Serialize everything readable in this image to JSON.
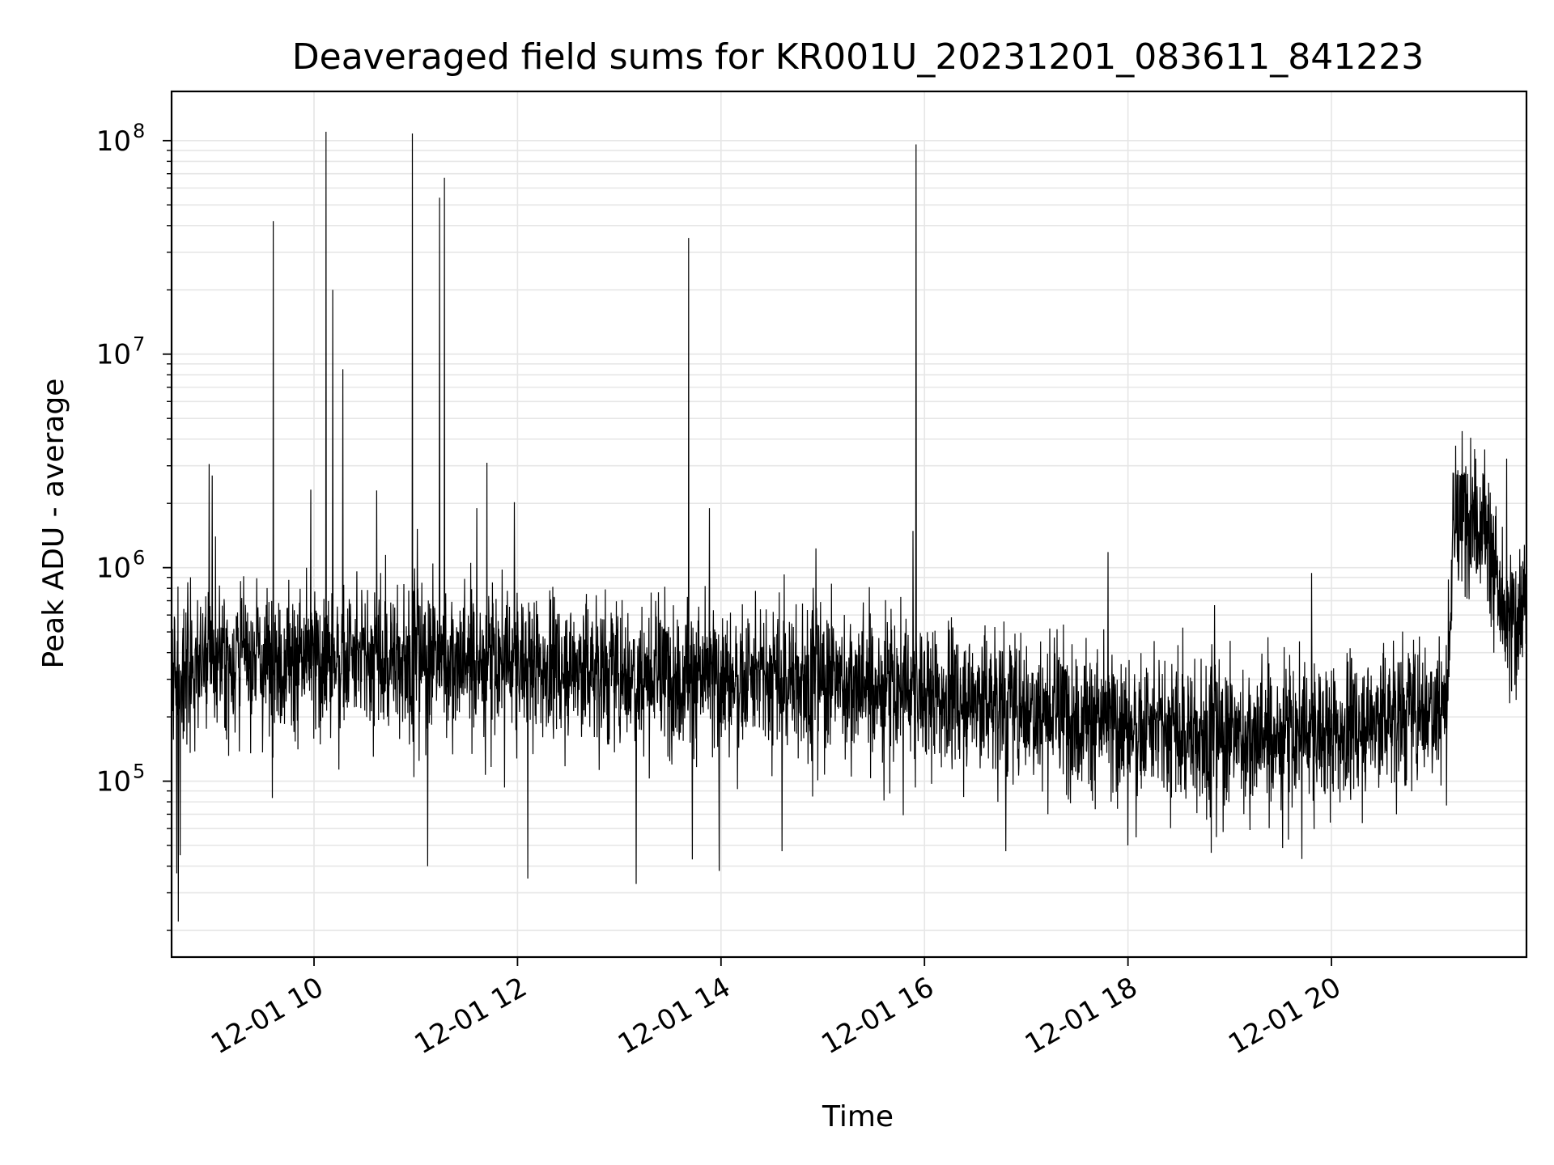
{
  "chart_data": {
    "type": "line",
    "title": "Deaveraged field sums for KR001U_20231201_083611_841223",
    "xlabel": "Time",
    "ylabel": "Peak ADU - average",
    "yscale": "log",
    "xlim": [
      "2023-12-01 08:36",
      "2023-12-01 21:55"
    ],
    "ylim": [
      15000,
      170000000
    ],
    "grid": true,
    "line_color": "#000000",
    "grid_color": "#e6e6e6",
    "x_ticks": [
      {
        "time": "2023-12-01 10:00",
        "label": "12-01 10"
      },
      {
        "time": "2023-12-01 12:00",
        "label": "12-01 12"
      },
      {
        "time": "2023-12-01 14:00",
        "label": "12-01 14"
      },
      {
        "time": "2023-12-01 16:00",
        "label": "12-01 16"
      },
      {
        "time": "2023-12-01 18:00",
        "label": "12-01 18"
      },
      {
        "time": "2023-12-01 20:00",
        "label": "12-01 20"
      }
    ],
    "y_ticks": [
      {
        "value": 100000,
        "base": "10",
        "exp": "5"
      },
      {
        "value": 1000000,
        "base": "10",
        "exp": "6"
      },
      {
        "value": 10000000,
        "base": "10",
        "exp": "7"
      },
      {
        "value": 100000000,
        "base": "10",
        "exp": "8"
      }
    ],
    "baseline": [
      {
        "time": "2023-12-01 08:36",
        "value": 300000
      },
      {
        "time": "2023-12-01 09:00",
        "value": 380000
      },
      {
        "time": "2023-12-01 10:00",
        "value": 370000
      },
      {
        "time": "2023-12-01 11:00",
        "value": 370000
      },
      {
        "time": "2023-12-01 12:00",
        "value": 360000
      },
      {
        "time": "2023-12-01 13:00",
        "value": 330000
      },
      {
        "time": "2023-12-01 14:00",
        "value": 300000
      },
      {
        "time": "2023-12-01 15:00",
        "value": 300000
      },
      {
        "time": "2023-12-01 16:00",
        "value": 260000
      },
      {
        "time": "2023-12-01 17:00",
        "value": 230000
      },
      {
        "time": "2023-12-01 18:00",
        "value": 180000
      },
      {
        "time": "2023-12-01 19:00",
        "value": 160000
      },
      {
        "time": "2023-12-01 20:00",
        "value": 170000
      },
      {
        "time": "2023-12-01 20:40",
        "value": 210000
      },
      {
        "time": "2023-12-01 21:08",
        "value": 240000
      },
      {
        "time": "2023-12-01 21:12",
        "value": 1500000
      },
      {
        "time": "2023-12-01 21:24",
        "value": 2000000
      },
      {
        "time": "2023-12-01 21:34",
        "value": 1300000
      },
      {
        "time": "2023-12-01 21:42",
        "value": 500000
      },
      {
        "time": "2023-12-01 21:55",
        "value": 700000
      }
    ],
    "spikes": [
      {
        "time": "2023-12-01 09:36",
        "value": 42000000
      },
      {
        "time": "2023-12-01 10:07",
        "value": 110000000
      },
      {
        "time": "2023-12-01 10:11",
        "value": 20000000
      },
      {
        "time": "2023-12-01 10:17",
        "value": 8500000
      },
      {
        "time": "2023-12-01 10:37",
        "value": 2300000
      },
      {
        "time": "2023-12-01 10:58",
        "value": 108000000
      },
      {
        "time": "2023-12-01 11:14",
        "value": 54000000
      },
      {
        "time": "2023-12-01 11:17",
        "value": 67000000
      },
      {
        "time": "2023-12-01 11:42",
        "value": 3100000
      },
      {
        "time": "2023-12-01 13:41",
        "value": 35000000
      },
      {
        "time": "2023-12-01 15:55",
        "value": 96000000
      },
      {
        "time": "2023-12-01 09:00",
        "value": 2700000
      },
      {
        "time": "2023-12-01 11:36",
        "value": 1900000
      }
    ],
    "dips": [
      {
        "time": "2023-12-01 08:40",
        "value": 22000
      },
      {
        "time": "2023-12-01 08:39",
        "value": 37000
      },
      {
        "time": "2023-12-01 08:41",
        "value": 45000
      },
      {
        "time": "2023-12-01 11:07",
        "value": 40000
      },
      {
        "time": "2023-12-01 12:06",
        "value": 35000
      },
      {
        "time": "2023-12-01 13:10",
        "value": 33000
      },
      {
        "time": "2023-12-01 13:59",
        "value": 38000
      },
      {
        "time": "2023-12-01 13:43",
        "value": 43000
      },
      {
        "time": "2023-12-01 14:36",
        "value": 47000
      },
      {
        "time": "2023-12-01 16:48",
        "value": 47000
      },
      {
        "time": "2023-12-01 18:00",
        "value": 50000
      }
    ]
  }
}
